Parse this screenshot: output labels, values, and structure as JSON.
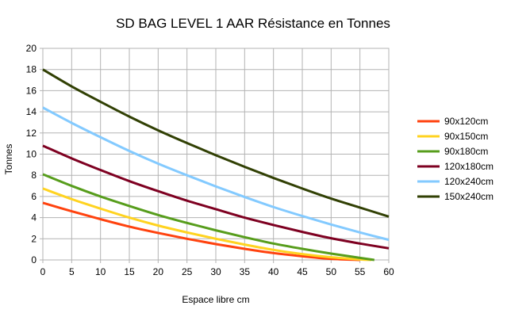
{
  "chart_data": {
    "type": "line",
    "title": "SD BAG LEVEL 1 AAR Résistance en Tonnes",
    "xlabel": "Espace libre cm",
    "ylabel": "Tonnes",
    "xlim": [
      0,
      60
    ],
    "ylim": [
      0,
      20
    ],
    "x_ticks": [
      "0",
      "5",
      "10",
      "15",
      "20",
      "25",
      "30",
      "35",
      "40",
      "45",
      "50",
      "55",
      "60"
    ],
    "y_ticks": [
      "0",
      "2",
      "4",
      "6",
      "8",
      "10",
      "12",
      "14",
      "16",
      "18",
      "20"
    ],
    "grid": true,
    "legend_position": "right",
    "series": [
      {
        "name": "90x120cm",
        "color": "#ff420e",
        "x": [
          0,
          5,
          10,
          15,
          20,
          25,
          30,
          35,
          40,
          45,
          50,
          55
        ],
        "y": [
          5.4,
          4.6,
          3.85,
          3.15,
          2.55,
          2.0,
          1.5,
          1.05,
          0.65,
          0.35,
          0.1,
          0.0
        ]
      },
      {
        "name": "90x150cm",
        "color": "#ffd320",
        "x": [
          0,
          5,
          10,
          15,
          20,
          25,
          30,
          35,
          40,
          45,
          50,
          55,
          57
        ],
        "y": [
          6.75,
          5.75,
          4.85,
          4.0,
          3.25,
          2.6,
          2.0,
          1.45,
          0.95,
          0.55,
          0.25,
          0.05,
          0.0
        ]
      },
      {
        "name": "90x180cm",
        "color": "#579d1c",
        "x": [
          0,
          5,
          10,
          15,
          20,
          25,
          30,
          35,
          40,
          45,
          50,
          55,
          57.5
        ],
        "y": [
          8.1,
          7.0,
          6.0,
          5.1,
          4.25,
          3.5,
          2.8,
          2.15,
          1.55,
          1.05,
          0.6,
          0.2,
          0.0
        ]
      },
      {
        "name": "120x180cm",
        "color": "#7e0021",
        "x": [
          0,
          5,
          10,
          15,
          20,
          25,
          30,
          35,
          40,
          45,
          50,
          55,
          60
        ],
        "y": [
          10.8,
          9.6,
          8.5,
          7.45,
          6.5,
          5.6,
          4.8,
          4.0,
          3.3,
          2.65,
          2.05,
          1.55,
          1.1
        ]
      },
      {
        "name": "120x240cm",
        "color": "#83caff",
        "x": [
          0,
          5,
          10,
          15,
          20,
          25,
          30,
          35,
          40,
          45,
          50,
          55,
          60
        ],
        "y": [
          14.4,
          12.95,
          11.6,
          10.3,
          9.1,
          8.0,
          6.95,
          5.95,
          5.0,
          4.15,
          3.35,
          2.6,
          1.9
        ]
      },
      {
        "name": "150x240cm",
        "color": "#314004",
        "x": [
          0,
          5,
          10,
          15,
          20,
          25,
          30,
          35,
          40,
          45,
          50,
          55,
          60
        ],
        "y": [
          18.0,
          16.4,
          14.95,
          13.55,
          12.25,
          11.05,
          9.9,
          8.8,
          7.75,
          6.75,
          5.8,
          4.95,
          4.1
        ]
      }
    ]
  }
}
